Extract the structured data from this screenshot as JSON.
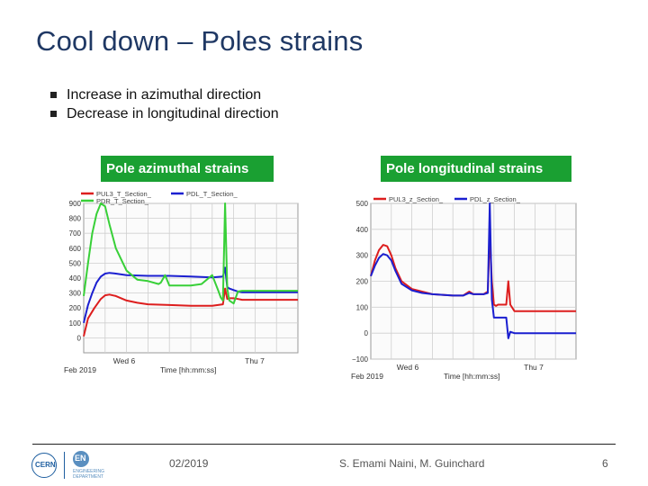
{
  "slide": {
    "title": "Cool down – Poles strains",
    "bullets": [
      "Increase in azimuthal direction",
      "Decrease in longitudinal direction"
    ],
    "footer": {
      "date": "02/2019",
      "author": "S. Emami Naini, M. Guinchard",
      "page": "6",
      "logo_text": "CERN",
      "logo2_text": "EN",
      "logo2_sub": "ENGINEERING DEPARTMENT"
    }
  },
  "colors": {
    "title": "#1f3864",
    "badge": "#1aa032",
    "series_red": "#dd1e1e",
    "series_blue": "#1b1fd0",
    "series_green": "#38d038",
    "plot_bg": "#fbfbfb",
    "grid": "#cfcfcf"
  },
  "chart_data": [
    {
      "type": "line",
      "title": "Pole azimuthal strains",
      "xlabel": "Time  [hh:mm:ss]",
      "date_label": "Feb 2019",
      "x_ticks": [
        "Wed 6",
        "Thu 7"
      ],
      "y_ticks": [
        0,
        100,
        200,
        300,
        400,
        500,
        600,
        700,
        800,
        900
      ],
      "y_tick_labels": [
        "0",
        "100",
        "200",
        "300",
        "400",
        "500",
        "600",
        "700",
        "800",
        "900"
      ],
      "ylim": [
        -100,
        900
      ],
      "grid": true,
      "legend_position": "top",
      "x_domain": [
        0,
        100
      ],
      "series": [
        {
          "name": "PUL3_T_Section_",
          "color": "#dd1e1e",
          "x": [
            0,
            2,
            5,
            8,
            10,
            12,
            15,
            20,
            25,
            30,
            40,
            50,
            60,
            65,
            66,
            67,
            68,
            70,
            72,
            74,
            100
          ],
          "y": [
            10,
            130,
            200,
            260,
            285,
            290,
            280,
            250,
            235,
            225,
            220,
            215,
            215,
            225,
            330,
            260,
            265,
            265,
            260,
            255,
            255
          ]
        },
        {
          "name": "PDL_T_Section_",
          "color": "#1b1fd0",
          "x": [
            0,
            2,
            4,
            6,
            8,
            10,
            12,
            15,
            20,
            30,
            40,
            50,
            60,
            65,
            66,
            67,
            68,
            70,
            72,
            74,
            100
          ],
          "y": [
            100,
            220,
            300,
            370,
            410,
            430,
            435,
            430,
            420,
            415,
            415,
            410,
            405,
            410,
            470,
            340,
            330,
            320,
            310,
            305,
            305
          ]
        },
        {
          "name": "PDR_T_Section_",
          "color": "#38d038",
          "x": [
            0,
            2,
            4,
            6,
            8,
            10,
            12,
            15,
            20,
            25,
            30,
            35,
            36,
            38,
            40,
            45,
            50,
            55,
            60,
            63,
            64,
            65,
            66,
            67,
            68,
            70,
            72,
            74,
            100
          ],
          "y": [
            280,
            500,
            700,
            830,
            900,
            880,
            760,
            600,
            450,
            390,
            380,
            360,
            370,
            420,
            350,
            350,
            350,
            360,
            420,
            310,
            270,
            250,
            900,
            330,
            250,
            230,
            310,
            315,
            315
          ]
        }
      ]
    },
    {
      "type": "line",
      "title": "Pole longitudinal strains",
      "xlabel": "Time  [hh:mm:ss]",
      "date_label": "Feb 2019",
      "x_ticks": [
        "Wed 6",
        "Thu 7"
      ],
      "y_ticks": [
        -100,
        0,
        100,
        200,
        300,
        400,
        500
      ],
      "y_tick_labels": [
        "−100",
        "0",
        "100",
        "200",
        "300",
        "400",
        "500"
      ],
      "ylim": [
        -100,
        500
      ],
      "grid": true,
      "legend_position": "top",
      "x_domain": [
        0,
        100
      ],
      "series": [
        {
          "name": "PUL3_z_Section_",
          "color": "#dd1e1e",
          "x": [
            0,
            2,
            4,
            6,
            8,
            10,
            12,
            15,
            20,
            25,
            30,
            40,
            45,
            48,
            50,
            55,
            57,
            58,
            59,
            60,
            61,
            62,
            66,
            67,
            68,
            70,
            100
          ],
          "y": [
            220,
            280,
            320,
            340,
            335,
            300,
            250,
            200,
            170,
            160,
            150,
            145,
            145,
            160,
            150,
            150,
            160,
            380,
            200,
            110,
            105,
            110,
            110,
            200,
            110,
            85,
            85
          ]
        },
        {
          "name": "PDL_z_Section_",
          "color": "#1b1fd0",
          "x": [
            0,
            2,
            4,
            6,
            8,
            10,
            12,
            15,
            20,
            25,
            30,
            40,
            45,
            48,
            50,
            55,
            57,
            58,
            59,
            60,
            61,
            62,
            66,
            67,
            68,
            70,
            72,
            100
          ],
          "y": [
            220,
            260,
            290,
            305,
            300,
            280,
            240,
            190,
            165,
            155,
            150,
            145,
            145,
            155,
            150,
            150,
            155,
            500,
            130,
            60,
            60,
            60,
            60,
            -20,
            5,
            0,
            0,
            0
          ]
        }
      ]
    }
  ]
}
